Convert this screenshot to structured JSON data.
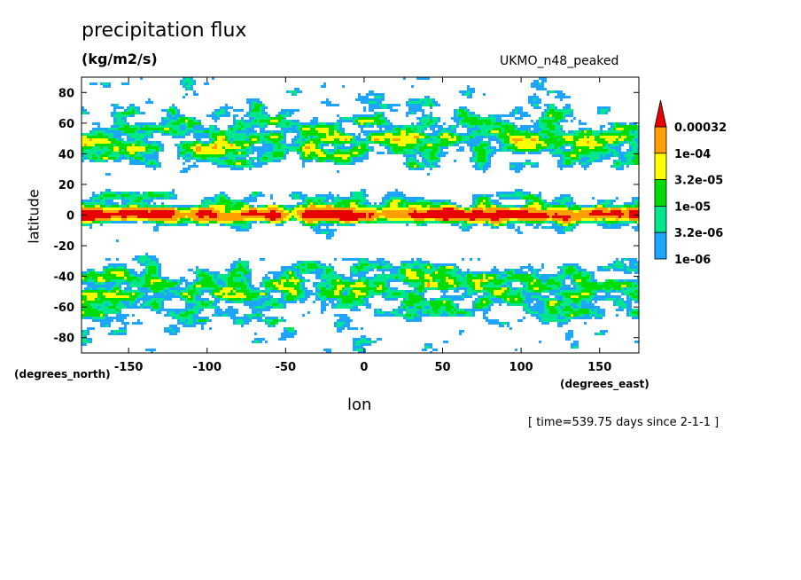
{
  "title": "precipitation flux",
  "units": "(kg/m2/s)",
  "model_label": "UKMO_n48_peaked",
  "footer": "[ time=539.75 days since 2-1-1 ]",
  "chart_data": {
    "type": "heatmap",
    "title": "precipitation flux",
    "subtitle": "(kg/m2/s)",
    "xlabel": "lon",
    "ylabel": "latitude",
    "x_units": "(degrees_east)",
    "y_units": "(degrees_north)",
    "xlim": [
      -180,
      175
    ],
    "ylim": [
      -90,
      90
    ],
    "x_ticks": [
      -150,
      -100,
      -50,
      0,
      50,
      100,
      150
    ],
    "y_ticks": [
      80,
      60,
      40,
      20,
      0,
      -20,
      -40,
      -60,
      -80
    ],
    "x_tick_labels": [
      "-150",
      "-100",
      "-50",
      "0",
      "50",
      "100",
      "150"
    ],
    "y_tick_labels": [
      "80",
      "60",
      "40",
      "20",
      "0",
      "-20",
      "-40",
      "-60",
      "-80"
    ],
    "levels": [
      1e-06,
      3.2e-06,
      1e-05,
      3.2e-05,
      0.0001,
      0.00032
    ],
    "colorbar_labels": [
      "0.00032",
      "1e-04",
      "3.2e-05",
      "1e-05",
      "3.2e-06",
      "1e-06"
    ],
    "colors": {
      "below_1e-06": "#ffffff",
      "1e-06_3.2e-06": "#1ea5ff",
      "3.2e-06_1e-05": "#00e68c",
      "1e-05_3.2e-05": "#00dc00",
      "3.2e-05_1e-04": "#ffff00",
      "1e-04_0.00032": "#ffa000",
      "above_0.00032": "#e60000"
    },
    "legend_position": "right",
    "grid": false
  }
}
